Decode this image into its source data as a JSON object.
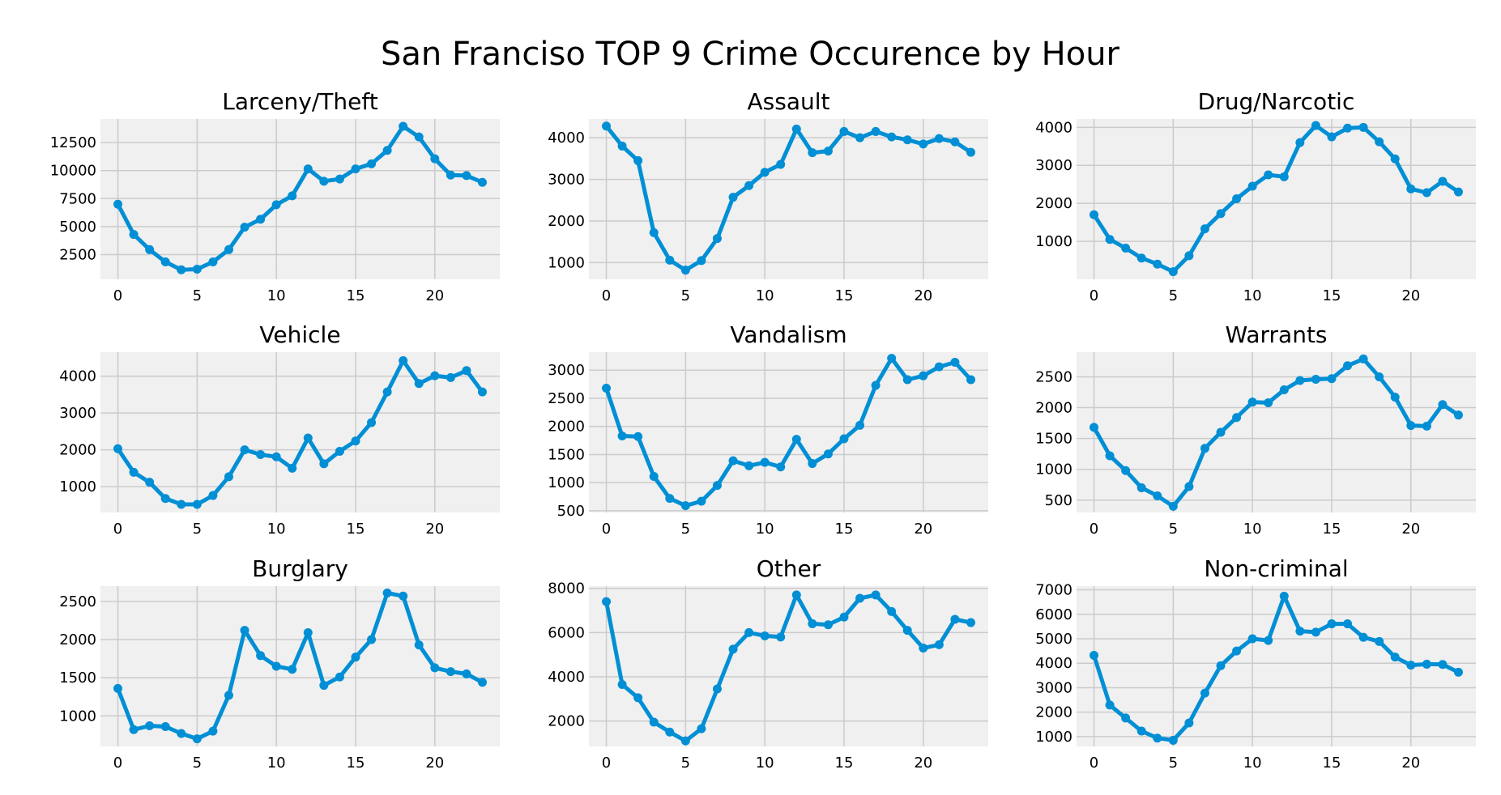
{
  "figure_title": "San Franciso TOP 9 Crime Occurence by Hour",
  "colors": {
    "series": "#008fd5",
    "panel_background": "#f0f0f0",
    "grid": "#cbcbcb"
  },
  "chart_data": [
    {
      "type": "line",
      "title": "Larceny/Theft",
      "x": [
        0,
        1,
        2,
        3,
        4,
        5,
        6,
        7,
        8,
        9,
        10,
        11,
        12,
        13,
        14,
        15,
        16,
        17,
        18,
        19,
        20,
        21,
        22,
        23
      ],
      "values": [
        7000,
        4300,
        2950,
        1850,
        1150,
        1200,
        1850,
        2950,
        4950,
        5650,
        6950,
        7750,
        10150,
        9050,
        9250,
        10150,
        10600,
        11800,
        13950,
        13000,
        11050,
        9600,
        9550,
        8950
      ],
      "xticks": [
        "0",
        "5",
        "10",
        "15",
        "20"
      ],
      "xtick_values": [
        0,
        5,
        10,
        15,
        20
      ],
      "yticks": [
        "2500",
        "5000",
        "7500",
        "10000",
        "12500"
      ],
      "ytick_values": [
        2500,
        5000,
        7500,
        10000,
        12500
      ],
      "xlim": [
        -1.1,
        24.1
      ],
      "ylim": [
        300,
        14600
      ],
      "grid": true
    },
    {
      "type": "line",
      "title": "Assault",
      "x": [
        0,
        1,
        2,
        3,
        4,
        5,
        6,
        7,
        8,
        9,
        10,
        11,
        12,
        13,
        14,
        15,
        16,
        17,
        18,
        19,
        20,
        21,
        22,
        23
      ],
      "values": [
        4280,
        3800,
        3450,
        1720,
        1060,
        820,
        1050,
        1580,
        2570,
        2850,
        3170,
        3360,
        4210,
        3640,
        3680,
        4150,
        4000,
        4150,
        4020,
        3950,
        3850,
        3980,
        3900,
        3650
      ],
      "xticks": [
        "0",
        "5",
        "10",
        "15",
        "20"
      ],
      "xtick_values": [
        0,
        5,
        10,
        15,
        20
      ],
      "yticks": [
        "1000",
        "2000",
        "3000",
        "4000"
      ],
      "ytick_values": [
        1000,
        2000,
        3000,
        4000
      ],
      "xlim": [
        -1.1,
        24.1
      ],
      "ylim": [
        600,
        4450
      ],
      "grid": true
    },
    {
      "type": "line",
      "title": "Drug/Narcotic",
      "x": [
        0,
        1,
        2,
        3,
        4,
        5,
        6,
        7,
        8,
        9,
        10,
        11,
        12,
        13,
        14,
        15,
        16,
        17,
        18,
        19,
        20,
        21,
        22,
        23
      ],
      "values": [
        1700,
        1050,
        820,
        560,
        400,
        200,
        620,
        1330,
        1730,
        2120,
        2450,
        2750,
        2700,
        3600,
        4050,
        3750,
        3980,
        4000,
        3620,
        3170,
        2380,
        2280,
        2580,
        2300
      ],
      "xticks": [
        "0",
        "5",
        "10",
        "15",
        "20"
      ],
      "xtick_values": [
        0,
        5,
        10,
        15,
        20
      ],
      "yticks": [
        "1000",
        "2000",
        "3000",
        "4000"
      ],
      "ytick_values": [
        1000,
        2000,
        3000,
        4000
      ],
      "xlim": [
        -1.1,
        24.1
      ],
      "ylim": [
        0,
        4220
      ],
      "grid": true
    },
    {
      "type": "line",
      "title": "Vehicle",
      "x": [
        0,
        1,
        2,
        3,
        4,
        5,
        6,
        7,
        8,
        9,
        10,
        11,
        12,
        13,
        14,
        15,
        16,
        17,
        18,
        19,
        20,
        21,
        22,
        23
      ],
      "values": [
        2030,
        1390,
        1120,
        680,
        520,
        520,
        760,
        1270,
        2000,
        1870,
        1810,
        1500,
        2320,
        1620,
        1960,
        2240,
        2740,
        3570,
        4420,
        3800,
        4010,
        3960,
        4150,
        3570
      ],
      "xticks": [
        "0",
        "5",
        "10",
        "15",
        "20"
      ],
      "xtick_values": [
        0,
        5,
        10,
        15,
        20
      ],
      "yticks": [
        "1000",
        "2000",
        "3000",
        "4000"
      ],
      "ytick_values": [
        1000,
        2000,
        3000,
        4000
      ],
      "xlim": [
        -1.1,
        24.1
      ],
      "ylim": [
        300,
        4650
      ],
      "grid": true
    },
    {
      "type": "line",
      "title": "Vandalism",
      "x": [
        0,
        1,
        2,
        3,
        4,
        5,
        6,
        7,
        8,
        9,
        10,
        11,
        12,
        13,
        14,
        15,
        16,
        17,
        18,
        19,
        20,
        21,
        22,
        23
      ],
      "values": [
        2680,
        1830,
        1820,
        1110,
        720,
        590,
        670,
        950,
        1390,
        1300,
        1360,
        1280,
        1770,
        1340,
        1510,
        1780,
        2020,
        2730,
        3210,
        2830,
        2900,
        3060,
        3140,
        2830
      ],
      "xticks": [
        "0",
        "5",
        "10",
        "15",
        "20"
      ],
      "xtick_values": [
        0,
        5,
        10,
        15,
        20
      ],
      "yticks": [
        "500",
        "1000",
        "1500",
        "2000",
        "2500",
        "3000"
      ],
      "ytick_values": [
        500,
        1000,
        1500,
        2000,
        2500,
        3000
      ],
      "xlim": [
        -1.1,
        24.1
      ],
      "ylim": [
        470,
        3320
      ],
      "grid": true
    },
    {
      "type": "line",
      "title": "Warrants",
      "x": [
        0,
        1,
        2,
        3,
        4,
        5,
        6,
        7,
        8,
        9,
        10,
        11,
        12,
        13,
        14,
        15,
        16,
        17,
        18,
        19,
        20,
        21,
        22,
        23
      ],
      "values": [
        1680,
        1220,
        980,
        700,
        570,
        400,
        720,
        1340,
        1600,
        1840,
        2090,
        2080,
        2290,
        2440,
        2460,
        2470,
        2680,
        2790,
        2500,
        2170,
        1710,
        1700,
        2050,
        1880
      ],
      "xticks": [
        "0",
        "5",
        "10",
        "15",
        "20"
      ],
      "xtick_values": [
        0,
        5,
        10,
        15,
        20
      ],
      "yticks": [
        "500",
        "1000",
        "1500",
        "2000",
        "2500"
      ],
      "ytick_values": [
        500,
        1000,
        1500,
        2000,
        2500
      ],
      "xlim": [
        -1.1,
        24.1
      ],
      "ylim": [
        300,
        2900
      ],
      "grid": true
    },
    {
      "type": "line",
      "title": "Burglary",
      "x": [
        0,
        1,
        2,
        3,
        4,
        5,
        6,
        7,
        8,
        9,
        10,
        11,
        12,
        13,
        14,
        15,
        16,
        17,
        18,
        19,
        20,
        21,
        22,
        23
      ],
      "values": [
        1360,
        820,
        870,
        860,
        770,
        700,
        800,
        1270,
        2120,
        1790,
        1650,
        1610,
        2090,
        1400,
        1510,
        1770,
        2000,
        2610,
        2570,
        1930,
        1630,
        1580,
        1550,
        1440
      ],
      "xticks": [
        "0",
        "5",
        "10",
        "15",
        "20"
      ],
      "xtick_values": [
        0,
        5,
        10,
        15,
        20
      ],
      "yticks": [
        "1000",
        "1500",
        "2000",
        "2500"
      ],
      "ytick_values": [
        1000,
        1500,
        2000,
        2500
      ],
      "xlim": [
        -1.1,
        24.1
      ],
      "ylim": [
        600,
        2700
      ],
      "grid": true
    },
    {
      "type": "line",
      "title": "Other",
      "x": [
        0,
        1,
        2,
        3,
        4,
        5,
        6,
        7,
        8,
        9,
        10,
        11,
        12,
        13,
        14,
        15,
        16,
        17,
        18,
        19,
        20,
        21,
        22,
        23
      ],
      "values": [
        7400,
        3650,
        3050,
        1950,
        1500,
        1100,
        1650,
        3450,
        5250,
        6000,
        5850,
        5800,
        7700,
        6400,
        6350,
        6700,
        7550,
        7700,
        6950,
        6100,
        5300,
        5450,
        6600,
        6450
      ],
      "xticks": [
        "0",
        "5",
        "10",
        "15",
        "20"
      ],
      "xtick_values": [
        0,
        5,
        10,
        15,
        20
      ],
      "yticks": [
        "2000",
        "4000",
        "6000",
        "8000"
      ],
      "ytick_values": [
        2000,
        4000,
        6000,
        8000
      ],
      "xlim": [
        -1.1,
        24.1
      ],
      "ylim": [
        850,
        8100
      ],
      "grid": true
    },
    {
      "type": "line",
      "title": "Non-criminal",
      "x": [
        0,
        1,
        2,
        3,
        4,
        5,
        6,
        7,
        8,
        9,
        10,
        11,
        12,
        13,
        14,
        15,
        16,
        17,
        18,
        19,
        20,
        21,
        22,
        23
      ],
      "values": [
        4320,
        2290,
        1760,
        1230,
        940,
        850,
        1560,
        2780,
        3900,
        4500,
        5000,
        4930,
        6740,
        5310,
        5270,
        5610,
        5610,
        5060,
        4890,
        4250,
        3920,
        3960,
        3950,
        3630
      ],
      "xticks": [
        "0",
        "5",
        "10",
        "15",
        "20"
      ],
      "xtick_values": [
        0,
        5,
        10,
        15,
        20
      ],
      "yticks": [
        "1000",
        "2000",
        "3000",
        "4000",
        "5000",
        "6000",
        "7000"
      ],
      "ytick_values": [
        1000,
        2000,
        3000,
        4000,
        5000,
        6000,
        7000
      ],
      "xlim": [
        -1.1,
        24.1
      ],
      "ylim": [
        600,
        7150
      ],
      "grid": true
    }
  ]
}
